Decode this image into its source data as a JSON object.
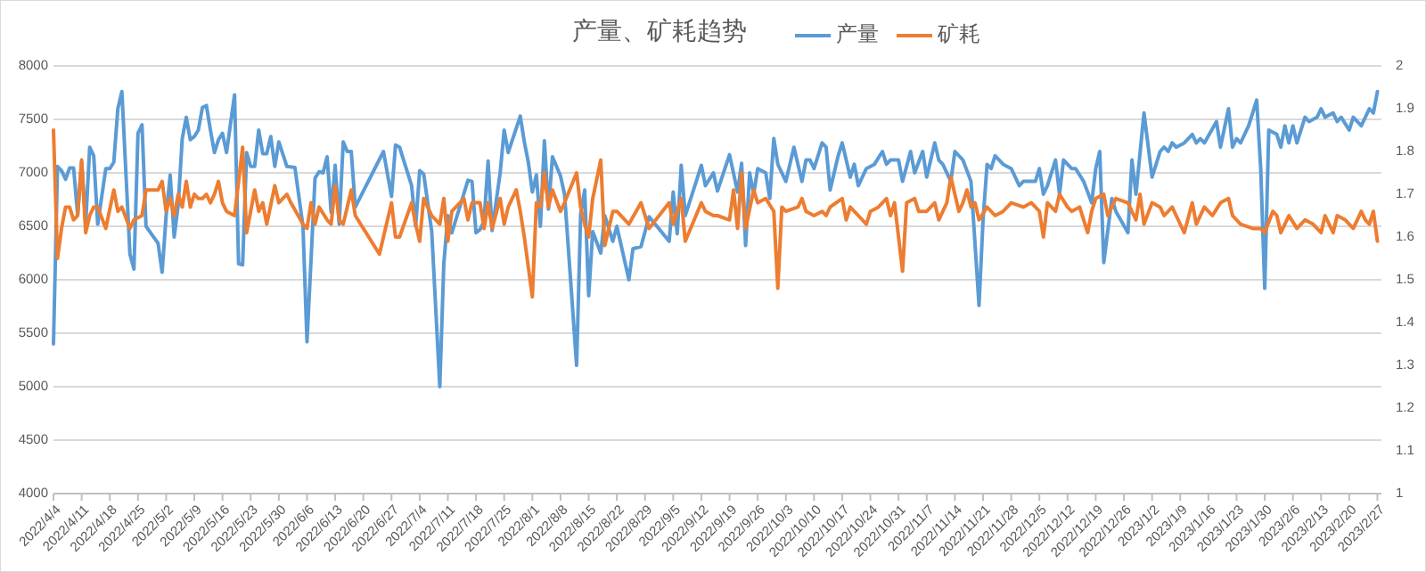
{
  "chart_data": {
    "type": "line",
    "title": "产量、矿耗趋势",
    "legend": "top",
    "grid": "y",
    "xlim": [
      "2022-04-04",
      "2023-02-28"
    ],
    "xticks": [
      {
        "value": "2022-04-04",
        "label": "2022/4/4"
      },
      {
        "value": "2022-04-11",
        "label": "2022/4/11"
      },
      {
        "value": "2022-04-18",
        "label": "2022/4/18"
      },
      {
        "value": "2022-04-25",
        "label": "2022/4/25"
      },
      {
        "value": "2022-05-02",
        "label": "2022/5/2"
      },
      {
        "value": "2022-05-09",
        "label": "2022/5/9"
      },
      {
        "value": "2022-05-16",
        "label": "2022/5/16"
      },
      {
        "value": "2022-05-23",
        "label": "2022/5/23"
      },
      {
        "value": "2022-05-30",
        "label": "2022/5/30"
      },
      {
        "value": "2022-06-06",
        "label": "2022/6/6"
      },
      {
        "value": "2022-06-13",
        "label": "2022/6/13"
      },
      {
        "value": "2022-06-20",
        "label": "2022/6/20"
      },
      {
        "value": "2022-06-27",
        "label": "2022/6/27"
      },
      {
        "value": "2022-07-04",
        "label": "2022/7/4"
      },
      {
        "value": "2022-07-11",
        "label": "2022/7/11"
      },
      {
        "value": "2022-07-18",
        "label": "2022/7/18"
      },
      {
        "value": "2022-07-25",
        "label": "2022/7/25"
      },
      {
        "value": "2022-08-01",
        "label": "2022/8/1"
      },
      {
        "value": "2022-08-08",
        "label": "2022/8/8"
      },
      {
        "value": "2022-08-15",
        "label": "2022/8/15"
      },
      {
        "value": "2022-08-22",
        "label": "2022/8/22"
      },
      {
        "value": "2022-08-29",
        "label": "2022/8/29"
      },
      {
        "value": "2022-09-05",
        "label": "2022/9/5"
      },
      {
        "value": "2022-09-12",
        "label": "2022/9/12"
      },
      {
        "value": "2022-09-19",
        "label": "2022/9/19"
      },
      {
        "value": "2022-09-26",
        "label": "2022/9/26"
      },
      {
        "value": "2022-10-03",
        "label": "2022/10/3"
      },
      {
        "value": "2022-10-10",
        "label": "2022/10/10"
      },
      {
        "value": "2022-10-17",
        "label": "2022/10/17"
      },
      {
        "value": "2022-10-24",
        "label": "2022/10/24"
      },
      {
        "value": "2022-10-31",
        "label": "2022/10/31"
      },
      {
        "value": "2022-11-07",
        "label": "2022/11/7"
      },
      {
        "value": "2022-11-14",
        "label": "2022/11/14"
      },
      {
        "value": "2022-11-21",
        "label": "2022/11/21"
      },
      {
        "value": "2022-11-28",
        "label": "2022/11/28"
      },
      {
        "value": "2022-12-05",
        "label": "2022/12/5"
      },
      {
        "value": "2022-12-12",
        "label": "2022/12/12"
      },
      {
        "value": "2022-12-19",
        "label": "2022/12/19"
      },
      {
        "value": "2022-12-26",
        "label": "2022/12/26"
      },
      {
        "value": "2023-01-02",
        "label": "2023/1/2"
      },
      {
        "value": "2023-01-09",
        "label": "2023/1/9"
      },
      {
        "value": "2023-01-16",
        "label": "2023/1/16"
      },
      {
        "value": "2023-01-23",
        "label": "2023/1/23"
      },
      {
        "value": "2023-01-30",
        "label": "2023/1/30"
      },
      {
        "value": "2023-02-06",
        "label": "2023/2/6"
      },
      {
        "value": "2023-02-13",
        "label": "2023/2/13"
      },
      {
        "value": "2023-02-20",
        "label": "2023/2/20"
      },
      {
        "value": "2023-02-27",
        "label": "2023/2/27"
      }
    ],
    "ylim": [
      4000,
      8000
    ],
    "yticks": [
      4000,
      4500,
      5000,
      5500,
      6000,
      6500,
      7000,
      7500,
      8000
    ],
    "y2lim": [
      1,
      2
    ],
    "y2ticks": [
      1,
      1.1,
      1.2,
      1.3,
      1.4,
      1.5,
      1.6,
      1.7,
      1.8,
      1.9,
      2
    ],
    "series": [
      {
        "name": "产量",
        "color": "#5b9bd5",
        "x": [
          "2022-04-04",
          "2022-04-05",
          "2022-04-06",
          "2022-04-07",
          "2022-04-08",
          "2022-04-09",
          "2022-04-10",
          "2022-04-11",
          "2022-04-12",
          "2022-04-13",
          "2022-04-14",
          "2022-04-15",
          "2022-04-17",
          "2022-04-18",
          "2022-04-19",
          "2022-04-20",
          "2022-04-21",
          "2022-04-23",
          "2022-04-24",
          "2022-04-25",
          "2022-04-26",
          "2022-04-27",
          "2022-04-30",
          "2022-05-01",
          "2022-05-02",
          "2022-05-03",
          "2022-05-04",
          "2022-05-05",
          "2022-05-06",
          "2022-05-07",
          "2022-05-08",
          "2022-05-09",
          "2022-05-10",
          "2022-05-11",
          "2022-05-12",
          "2022-05-13",
          "2022-05-14",
          "2022-05-15",
          "2022-05-16",
          "2022-05-17",
          "2022-05-19",
          "2022-05-20",
          "2022-05-21",
          "2022-05-22",
          "2022-05-23",
          "2022-05-24",
          "2022-05-25",
          "2022-05-26",
          "2022-05-27",
          "2022-05-28",
          "2022-05-29",
          "2022-05-30",
          "2022-06-01",
          "2022-06-03",
          "2022-06-05",
          "2022-06-06",
          "2022-06-08",
          "2022-06-09",
          "2022-06-10",
          "2022-06-11",
          "2022-06-12",
          "2022-06-13",
          "2022-06-14",
          "2022-06-15",
          "2022-06-16",
          "2022-06-17",
          "2022-06-18",
          "2022-06-25",
          "2022-06-27",
          "2022-06-28",
          "2022-06-29",
          "2022-07-02",
          "2022-07-03",
          "2022-07-04",
          "2022-07-05",
          "2022-07-07",
          "2022-07-09",
          "2022-07-10",
          "2022-07-11",
          "2022-07-12",
          "2022-07-16",
          "2022-07-17",
          "2022-07-18",
          "2022-07-19",
          "2022-07-20",
          "2022-07-21",
          "2022-07-22",
          "2022-07-24",
          "2022-07-25",
          "2022-07-26",
          "2022-07-29",
          "2022-07-30",
          "2022-07-31",
          "2022-08-01",
          "2022-08-02",
          "2022-08-03",
          "2022-08-04",
          "2022-08-05",
          "2022-08-06",
          "2022-08-08",
          "2022-08-09",
          "2022-08-12",
          "2022-08-13",
          "2022-08-14",
          "2022-08-15",
          "2022-08-16",
          "2022-08-18",
          "2022-08-19",
          "2022-08-21",
          "2022-08-22",
          "2022-08-25",
          "2022-08-26",
          "2022-08-28",
          "2022-08-30",
          "2022-09-04",
          "2022-09-05",
          "2022-09-06",
          "2022-09-07",
          "2022-09-08",
          "2022-09-12",
          "2022-09-13",
          "2022-09-15",
          "2022-09-16",
          "2022-09-19",
          "2022-09-21",
          "2022-09-22",
          "2022-09-23",
          "2022-09-24",
          "2022-09-25",
          "2022-09-26",
          "2022-09-28",
          "2022-09-29",
          "2022-09-30",
          "2022-10-01",
          "2022-10-03",
          "2022-10-04",
          "2022-10-05",
          "2022-10-07",
          "2022-10-08",
          "2022-10-09",
          "2022-10-10",
          "2022-10-12",
          "2022-10-13",
          "2022-10-14",
          "2022-10-16",
          "2022-10-17",
          "2022-10-19",
          "2022-10-20",
          "2022-10-21",
          "2022-10-23",
          "2022-10-25",
          "2022-10-27",
          "2022-10-28",
          "2022-10-29",
          "2022-10-31",
          "2022-11-01",
          "2022-11-03",
          "2022-11-04",
          "2022-11-06",
          "2022-11-07",
          "2022-11-09",
          "2022-11-10",
          "2022-11-11",
          "2022-11-13",
          "2022-11-14",
          "2022-11-16",
          "2022-11-18",
          "2022-11-20",
          "2022-11-21",
          "2022-11-22",
          "2022-11-23",
          "2022-11-24",
          "2022-11-26",
          "2022-11-28",
          "2022-11-30",
          "2022-12-01",
          "2022-12-04",
          "2022-12-05",
          "2022-12-06",
          "2022-12-07",
          "2022-12-09",
          "2022-12-10",
          "2022-12-11",
          "2022-12-13",
          "2022-12-14",
          "2022-12-16",
          "2022-12-18",
          "2022-12-19",
          "2022-12-20",
          "2022-12-21",
          "2022-12-23",
          "2022-12-24",
          "2022-12-27",
          "2022-12-28",
          "2022-12-29",
          "2022-12-31",
          "2023-01-02",
          "2023-01-04",
          "2023-01-05",
          "2023-01-06",
          "2023-01-07",
          "2023-01-08",
          "2023-01-10",
          "2023-01-12",
          "2023-01-13",
          "2023-01-14",
          "2023-01-15",
          "2023-01-18",
          "2023-01-19",
          "2023-01-21",
          "2023-01-22",
          "2023-01-23",
          "2023-01-24",
          "2023-01-26",
          "2023-01-28",
          "2023-01-29",
          "2023-01-30",
          "2023-01-31",
          "2023-02-02",
          "2023-02-03",
          "2023-02-04",
          "2023-02-05",
          "2023-02-06",
          "2023-02-07",
          "2023-02-09",
          "2023-02-10",
          "2023-02-12",
          "2023-02-13",
          "2023-02-14",
          "2023-02-16",
          "2023-02-17",
          "2023-02-18",
          "2023-02-20",
          "2023-02-21",
          "2023-02-23",
          "2023-02-25",
          "2023-02-26",
          "2023-02-27"
        ],
        "values": [
          5400,
          7060,
          7020,
          6940,
          7045,
          7045,
          6610,
          7100,
          6520,
          7240,
          7160,
          6520,
          7040,
          7040,
          7100,
          7600,
          7760,
          6240,
          6100,
          7370,
          7450,
          6500,
          6340,
          6070,
          6600,
          6980,
          6400,
          6700,
          7320,
          7520,
          7310,
          7340,
          7400,
          7610,
          7630,
          7400,
          7190,
          7310,
          7370,
          7190,
          7730,
          6150,
          6140,
          7190,
          7060,
          7060,
          7400,
          7180,
          7180,
          7340,
          7060,
          7290,
          7060,
          7050,
          6500,
          5420,
          6950,
          7010,
          7000,
          7150,
          6630,
          7070,
          6520,
          7290,
          7200,
          7200,
          6680,
          7200,
          6780,
          7260,
          7240,
          6880,
          6500,
          7020,
          6990,
          6450,
          5000,
          6150,
          6600,
          6440,
          6930,
          6920,
          6440,
          6470,
          6550,
          7110,
          6460,
          7000,
          7400,
          7190,
          7530,
          7290,
          7100,
          6820,
          6980,
          6500,
          7300,
          6660,
          7150,
          6970,
          6800,
          5200,
          6610,
          6840,
          5850,
          6450,
          6250,
          6600,
          6360,
          6500,
          6000,
          6290,
          6310,
          6590,
          6360,
          6820,
          6430,
          7070,
          6600,
          7070,
          6880,
          7000,
          6830,
          7170,
          6820,
          7090,
          6320,
          7000,
          6800,
          7040,
          7000,
          6760,
          7320,
          7080,
          6920,
          7080,
          7240,
          6920,
          7120,
          7120,
          7040,
          7280,
          7240,
          6840,
          7160,
          7280,
          6960,
          7080,
          6880,
          7040,
          7080,
          7200,
          7080,
          7120,
          7120,
          6920,
          7200,
          7000,
          7200,
          6960,
          7280,
          7120,
          7080,
          6920,
          7200,
          7120,
          6920,
          5760,
          6560,
          7080,
          7040,
          7160,
          7080,
          7040,
          6880,
          6920,
          6920,
          7040,
          6800,
          6880,
          7120,
          6800,
          7120,
          7040,
          7040,
          6920,
          6720,
          7040,
          7200,
          6160,
          6760,
          6640,
          6440,
          7120,
          6800,
          7560,
          6960,
          7200,
          7240,
          7200,
          7280,
          7240,
          7280,
          7360,
          7280,
          7320,
          7280,
          7480,
          7240,
          7600,
          7240,
          7320,
          7280,
          7440,
          7680,
          7040,
          5920,
          7400,
          7360,
          7240,
          7440,
          7280,
          7440,
          7280,
          7520,
          7480,
          7520,
          7600,
          7520,
          7560,
          7480,
          7520,
          7400,
          7520,
          7440,
          7600,
          7560,
          7760
        ]
      },
      {
        "name": "矿耗",
        "color": "#ed7d31",
        "axis": "y2",
        "x": [
          "2022-04-04",
          "2022-04-05",
          "2022-04-06",
          "2022-04-07",
          "2022-04-08",
          "2022-04-09",
          "2022-04-10",
          "2022-04-11",
          "2022-04-12",
          "2022-04-13",
          "2022-04-14",
          "2022-04-15",
          "2022-04-17",
          "2022-04-19",
          "2022-04-20",
          "2022-04-21",
          "2022-04-23",
          "2022-04-24",
          "2022-04-26",
          "2022-04-27",
          "2022-04-30",
          "2022-05-01",
          "2022-05-02",
          "2022-05-03",
          "2022-05-04",
          "2022-05-05",
          "2022-05-06",
          "2022-05-07",
          "2022-05-08",
          "2022-05-09",
          "2022-05-10",
          "2022-05-11",
          "2022-05-12",
          "2022-05-13",
          "2022-05-14",
          "2022-05-15",
          "2022-05-16",
          "2022-05-17",
          "2022-05-19",
          "2022-05-21",
          "2022-05-22",
          "2022-05-23",
          "2022-05-24",
          "2022-05-25",
          "2022-05-26",
          "2022-05-27",
          "2022-05-29",
          "2022-05-30",
          "2022-06-01",
          "2022-06-02",
          "2022-06-05",
          "2022-06-06",
          "2022-06-07",
          "2022-06-08",
          "2022-06-09",
          "2022-06-11",
          "2022-06-12",
          "2022-06-13",
          "2022-06-14",
          "2022-06-15",
          "2022-06-17",
          "2022-06-18",
          "2022-06-24",
          "2022-06-27",
          "2022-06-28",
          "2022-06-29",
          "2022-07-02",
          "2022-07-03",
          "2022-07-04",
          "2022-07-05",
          "2022-07-07",
          "2022-07-09",
          "2022-07-10",
          "2022-07-11",
          "2022-07-12",
          "2022-07-15",
          "2022-07-16",
          "2022-07-17",
          "2022-07-19",
          "2022-07-20",
          "2022-07-21",
          "2022-07-22",
          "2022-07-24",
          "2022-07-25",
          "2022-07-26",
          "2022-07-28",
          "2022-07-29",
          "2022-07-30",
          "2022-08-01",
          "2022-08-02",
          "2022-08-03",
          "2022-08-04",
          "2022-08-05",
          "2022-08-06",
          "2022-08-08",
          "2022-08-09",
          "2022-08-12",
          "2022-08-13",
          "2022-08-14",
          "2022-08-15",
          "2022-08-16",
          "2022-08-18",
          "2022-08-19",
          "2022-08-21",
          "2022-08-22",
          "2022-08-25",
          "2022-08-28",
          "2022-08-30",
          "2022-09-04",
          "2022-09-05",
          "2022-09-06",
          "2022-09-07",
          "2022-09-08",
          "2022-09-12",
          "2022-09-13",
          "2022-09-15",
          "2022-09-16",
          "2022-09-19",
          "2022-09-20",
          "2022-09-21",
          "2022-09-22",
          "2022-09-23",
          "2022-09-25",
          "2022-09-26",
          "2022-09-28",
          "2022-09-30",
          "2022-10-01",
          "2022-10-02",
          "2022-10-03",
          "2022-10-06",
          "2022-10-07",
          "2022-10-08",
          "2022-10-10",
          "2022-10-12",
          "2022-10-13",
          "2022-10-14",
          "2022-10-17",
          "2022-10-18",
          "2022-10-19",
          "2022-10-21",
          "2022-10-23",
          "2022-10-24",
          "2022-10-26",
          "2022-10-28",
          "2022-10-29",
          "2022-10-30",
          "2022-11-01",
          "2022-11-02",
          "2022-11-04",
          "2022-11-05",
          "2022-11-07",
          "2022-11-09",
          "2022-11-10",
          "2022-11-12",
          "2022-11-13",
          "2022-11-15",
          "2022-11-16",
          "2022-11-17",
          "2022-11-18",
          "2022-11-19",
          "2022-11-20",
          "2022-11-22",
          "2022-11-24",
          "2022-11-26",
          "2022-11-27",
          "2022-11-28",
          "2022-12-01",
          "2022-12-03",
          "2022-12-05",
          "2022-12-06",
          "2022-12-07",
          "2022-12-09",
          "2022-12-10",
          "2022-12-12",
          "2022-12-13",
          "2022-12-15",
          "2022-12-17",
          "2022-12-18",
          "2022-12-19",
          "2022-12-21",
          "2022-12-22",
          "2022-12-24",
          "2022-12-27",
          "2022-12-29",
          "2022-12-30",
          "2022-12-31",
          "2023-01-02",
          "2023-01-04",
          "2023-01-05",
          "2023-01-07",
          "2023-01-08",
          "2023-01-10",
          "2023-01-12",
          "2023-01-13",
          "2023-01-15",
          "2023-01-17",
          "2023-01-19",
          "2023-01-21",
          "2023-01-22",
          "2023-01-24",
          "2023-01-27",
          "2023-01-29",
          "2023-01-30",
          "2023-02-01",
          "2023-02-02",
          "2023-02-03",
          "2023-02-05",
          "2023-02-07",
          "2023-02-09",
          "2023-02-11",
          "2023-02-13",
          "2023-02-14",
          "2023-02-16",
          "2023-02-17",
          "2023-02-19",
          "2023-02-21",
          "2023-02-23",
          "2023-02-24",
          "2023-02-25",
          "2023-02-26",
          "2023-02-27"
        ],
        "values": [
          1.85,
          1.55,
          1.62,
          1.67,
          1.67,
          1.64,
          1.65,
          1.78,
          1.61,
          1.65,
          1.67,
          1.67,
          1.62,
          1.71,
          1.66,
          1.67,
          1.62,
          1.64,
          1.65,
          1.71,
          1.71,
          1.73,
          1.66,
          1.69,
          1.65,
          1.7,
          1.67,
          1.73,
          1.67,
          1.7,
          1.69,
          1.69,
          1.7,
          1.68,
          1.7,
          1.73,
          1.68,
          1.66,
          1.65,
          1.81,
          1.61,
          1.66,
          1.71,
          1.66,
          1.68,
          1.63,
          1.72,
          1.68,
          1.7,
          1.68,
          1.63,
          1.62,
          1.68,
          1.63,
          1.67,
          1.64,
          1.63,
          1.72,
          1.64,
          1.63,
          1.71,
          1.65,
          1.56,
          1.68,
          1.6,
          1.6,
          1.68,
          1.63,
          1.59,
          1.69,
          1.65,
          1.63,
          1.69,
          1.59,
          1.66,
          1.69,
          1.64,
          1.68,
          1.68,
          1.62,
          1.68,
          1.62,
          1.69,
          1.63,
          1.67,
          1.71,
          1.66,
          1.6,
          1.46,
          1.68,
          1.67,
          1.75,
          1.67,
          1.71,
          1.66,
          1.68,
          1.75,
          1.67,
          1.63,
          1.6,
          1.69,
          1.78,
          1.58,
          1.66,
          1.66,
          1.63,
          1.68,
          1.62,
          1.68,
          1.63,
          1.66,
          1.69,
          1.59,
          1.68,
          1.66,
          1.65,
          1.65,
          1.64,
          1.71,
          1.62,
          1.75,
          1.62,
          1.71,
          1.68,
          1.69,
          1.66,
          1.48,
          1.67,
          1.66,
          1.67,
          1.69,
          1.66,
          1.65,
          1.66,
          1.65,
          1.67,
          1.69,
          1.64,
          1.67,
          1.65,
          1.63,
          1.66,
          1.67,
          1.69,
          1.65,
          1.68,
          1.52,
          1.68,
          1.69,
          1.66,
          1.66,
          1.68,
          1.64,
          1.68,
          1.74,
          1.66,
          1.68,
          1.71,
          1.67,
          1.68,
          1.64,
          1.67,
          1.65,
          1.66,
          1.67,
          1.68,
          1.67,
          1.68,
          1.66,
          1.6,
          1.68,
          1.66,
          1.7,
          1.67,
          1.66,
          1.67,
          1.61,
          1.66,
          1.69,
          1.7,
          1.65,
          1.69,
          1.68,
          1.64,
          1.7,
          1.63,
          1.68,
          1.67,
          1.65,
          1.67,
          1.65,
          1.61,
          1.68,
          1.63,
          1.67,
          1.65,
          1.68,
          1.69,
          1.65,
          1.63,
          1.62,
          1.62,
          1.61,
          1.66,
          1.65,
          1.61,
          1.65,
          1.62,
          1.64,
          1.63,
          1.61,
          1.65,
          1.61,
          1.65,
          1.64,
          1.62,
          1.66,
          1.64,
          1.63,
          1.66,
          1.59
        ]
      }
    ]
  }
}
